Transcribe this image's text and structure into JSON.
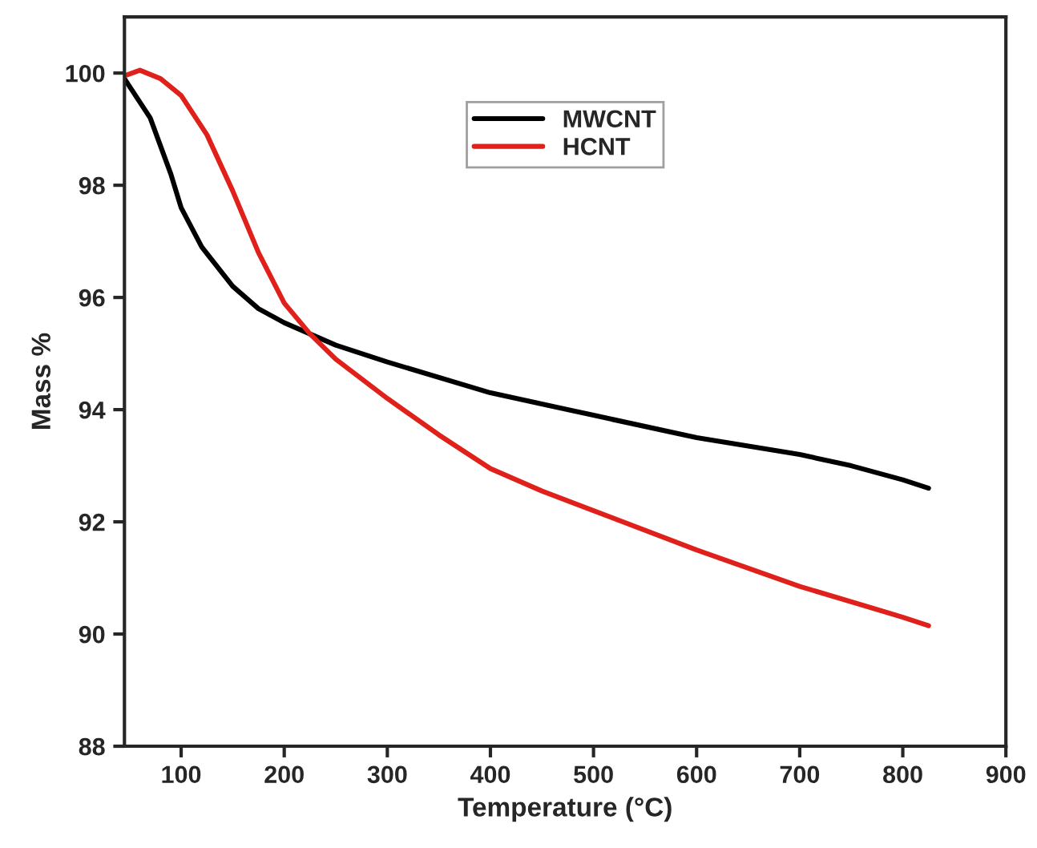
{
  "chart_data": {
    "type": "line",
    "xlabel": "Temperature (°C)",
    "ylabel": "Mass %",
    "xlim": [
      45,
      900
    ],
    "xticks": [
      100,
      200,
      300,
      400,
      500,
      600,
      700,
      800,
      900
    ],
    "ylim": [
      88,
      101
    ],
    "yticks": [
      88,
      90,
      92,
      94,
      96,
      98,
      100
    ],
    "grid": false,
    "legend": "top",
    "marker": "none",
    "line_style": "solid",
    "series": [
      {
        "name": "MWCNT",
        "color": "#000000",
        "x": [
          45,
          70,
          90,
          100,
          120,
          150,
          175,
          200,
          250,
          300,
          400,
          500,
          600,
          700,
          750,
          800,
          825
        ],
        "values": [
          99.9,
          99.2,
          98.2,
          97.6,
          96.9,
          96.2,
          95.8,
          95.55,
          95.15,
          94.85,
          94.3,
          93.9,
          93.5,
          93.2,
          93.0,
          92.75,
          92.6
        ]
      },
      {
        "name": "HCNT",
        "color": "#e0201b",
        "x": [
          45,
          60,
          80,
          100,
          125,
          150,
          175,
          200,
          225,
          250,
          300,
          350,
          400,
          450,
          500,
          600,
          700,
          800,
          825
        ],
        "values": [
          99.95,
          100.05,
          99.9,
          99.6,
          98.9,
          97.9,
          96.8,
          95.9,
          95.35,
          94.9,
          94.2,
          93.55,
          92.95,
          92.55,
          92.2,
          91.5,
          90.85,
          90.3,
          90.15
        ]
      }
    ]
  }
}
